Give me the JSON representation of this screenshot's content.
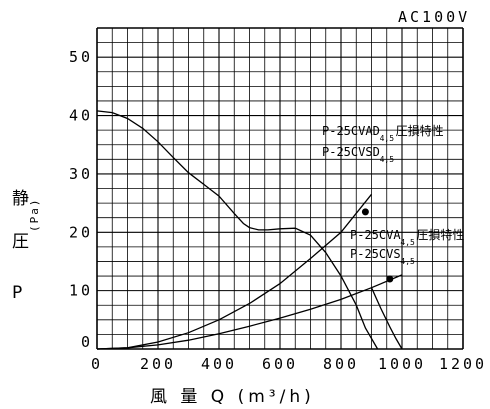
{
  "chart_data": {
    "type": "line",
    "title": "AC100V",
    "xlabel": "風 量 Q (m³/h)",
    "ylabel_main": "静 圧",
    "ylabel_unit": "(Pa)",
    "ylabel_symbol": "P",
    "xlim": [
      0,
      1200
    ],
    "ylim": [
      0,
      55
    ],
    "x_ticks": [
      0,
      200,
      400,
      600,
      800,
      1000,
      1200
    ],
    "y_ticks": [
      0,
      10,
      20,
      30,
      40,
      50
    ],
    "x_minor_step": 50,
    "y_minor_step": 2.5,
    "grid": true,
    "series": [
      {
        "name": "P-25CVAD4,5 P-25CVSD4,5",
        "x": [
          0,
          50,
          100,
          150,
          200,
          250,
          300,
          350,
          400,
          450,
          480,
          500,
          530,
          560,
          600,
          650,
          700,
          750,
          800,
          850,
          880,
          920
        ],
        "y": [
          40.8,
          40.5,
          39.5,
          37.8,
          35.5,
          32.8,
          30.2,
          28.2,
          26.2,
          23.2,
          21.5,
          20.8,
          20.4,
          20.4,
          20.6,
          20.7,
          19.5,
          16.5,
          12.5,
          7.5,
          3.6,
          0
        ]
      },
      {
        "name": "P-25CVAD4,5 P-25CVSD4,5 圧損特性",
        "x": [
          0,
          100,
          200,
          300,
          400,
          500,
          600,
          700,
          800,
          900
        ],
        "y": [
          0,
          0.2,
          1.2,
          2.8,
          5.0,
          7.8,
          11.2,
          15.5,
          20.0,
          26.5
        ],
        "marker": {
          "x": 880,
          "y": 23.5
        }
      },
      {
        "name": "P-25CVA4,5 P-25CVS4,5 圧損特性",
        "x": [
          0,
          100,
          200,
          300,
          400,
          500,
          600,
          700,
          800,
          900,
          1000
        ],
        "y": [
          0,
          0.2,
          0.7,
          1.5,
          2.6,
          3.9,
          5.3,
          6.8,
          8.5,
          10.5,
          12.7
        ],
        "marker": {
          "x": 960,
          "y": 12
        }
      },
      {
        "name": "P-25CVA4,5 P-25CVS4,5",
        "x": [
          900,
          930,
          960,
          980,
          1000
        ],
        "y": [
          10.5,
          7,
          3.8,
          1.8,
          0
        ]
      }
    ],
    "annotations": [
      {
        "lines": [
          "P-25CVAD",
          "P-25CVSD"
        ],
        "sub": "4,5",
        "suffix": "圧損特性"
      },
      {
        "lines": [
          "P-25CVA",
          "P-25CVS"
        ],
        "sub": "4,5",
        "suffix": "圧損特性"
      }
    ]
  }
}
